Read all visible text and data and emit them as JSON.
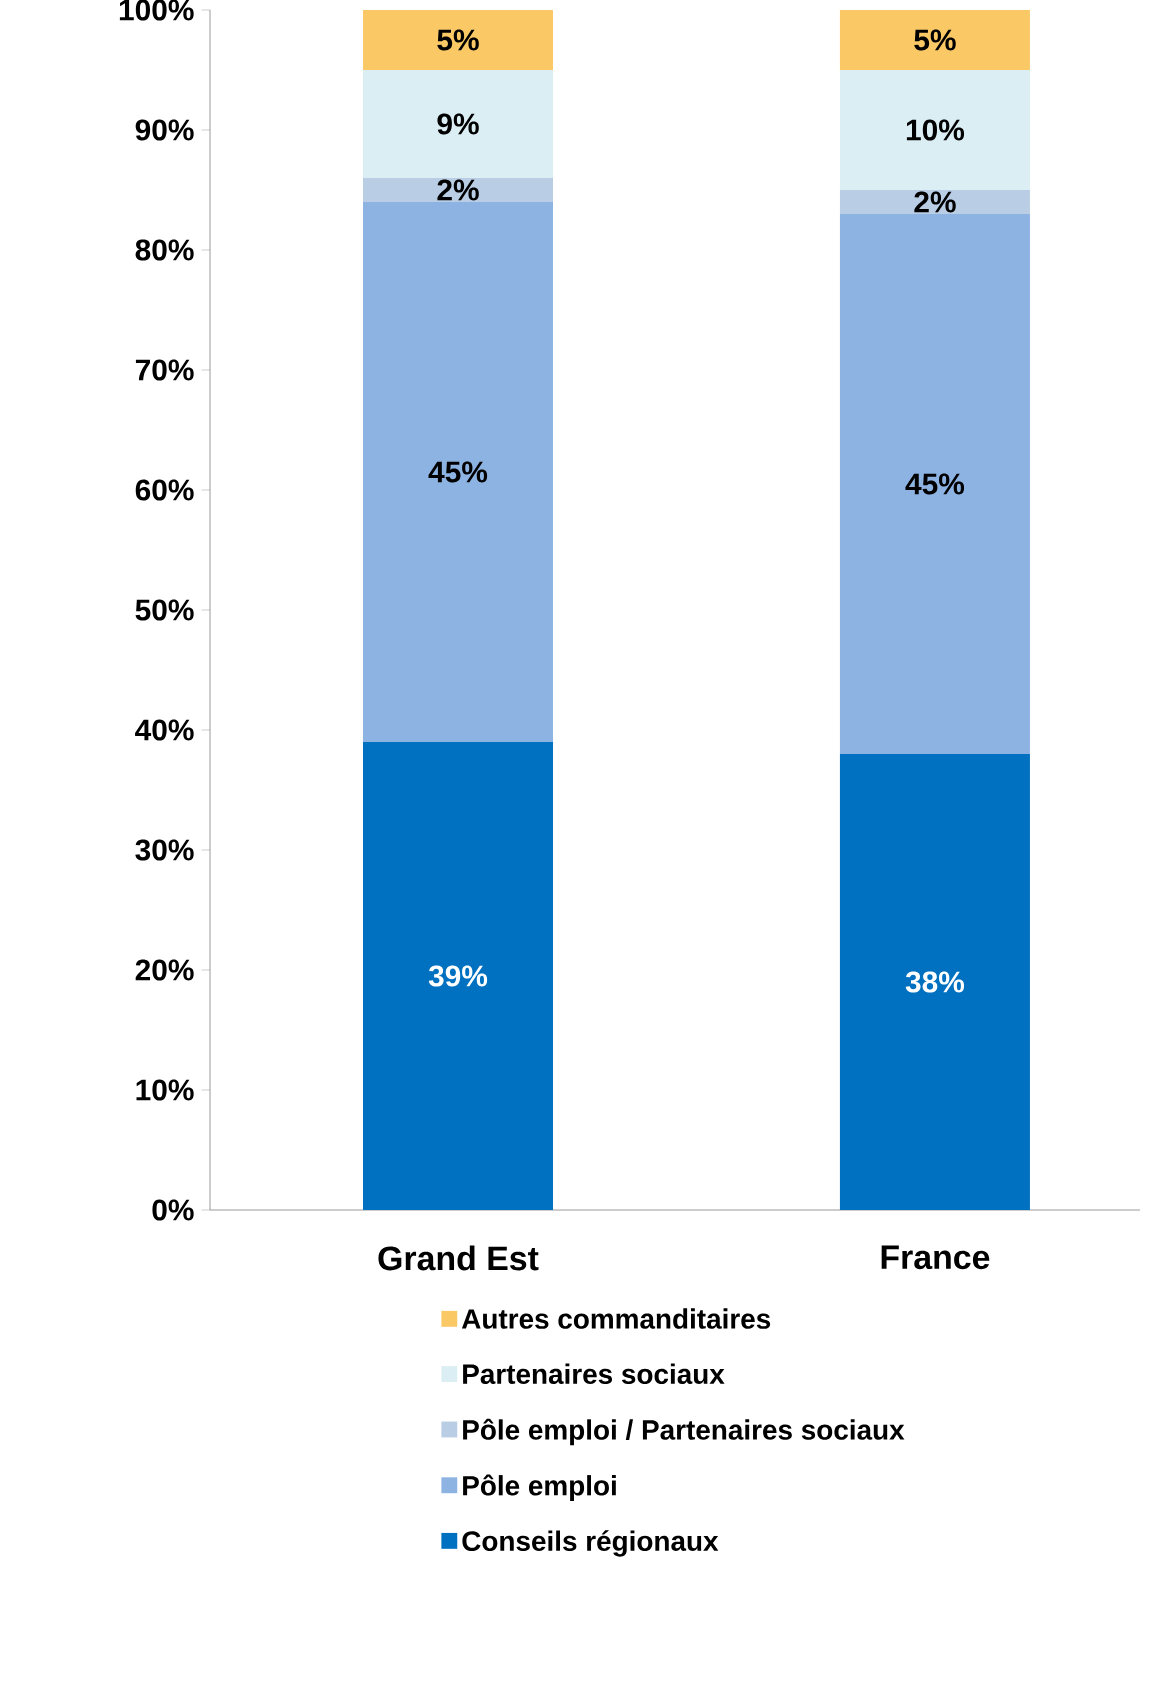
{
  "chart_data": {
    "type": "bar",
    "stacked": true,
    "categories": [
      "Grand Est",
      "France"
    ],
    "series": [
      {
        "name": "Conseils régionaux",
        "color": "#0070c0",
        "values": [
          39,
          38
        ],
        "value_labels": [
          "39%",
          "38%"
        ]
      },
      {
        "name": "Pôle emploi",
        "color": "#8db3e2",
        "values": [
          45,
          45
        ],
        "value_labels": [
          "45%",
          "45%"
        ]
      },
      {
        "name": "Pôle emploi / Partenaires sociaux",
        "color": "#b9cde5",
        "values": [
          2,
          2
        ],
        "value_labels": [
          "2%",
          "2%"
        ]
      },
      {
        "name": "Partenaires sociaux",
        "color": "#dbeef3",
        "values": [
          9,
          10
        ],
        "value_labels": [
          "9%",
          "10%"
        ]
      },
      {
        "name": "Autres commanditaires",
        "color": "#fac864",
        "values": [
          5,
          5
        ],
        "value_labels": [
          "5%",
          "5%"
        ]
      }
    ],
    "ylim": [
      0,
      100
    ],
    "yticks": [
      {
        "value": 0,
        "label": "0%"
      },
      {
        "value": 10,
        "label": "10%"
      },
      {
        "value": 20,
        "label": "20%"
      },
      {
        "value": 30,
        "label": "30%"
      },
      {
        "value": 40,
        "label": "40%"
      },
      {
        "value": 50,
        "label": "50%"
      },
      {
        "value": 60,
        "label": "60%"
      },
      {
        "value": 70,
        "label": "70%"
      },
      {
        "value": 80,
        "label": "80%"
      },
      {
        "value": 90,
        "label": "90%"
      },
      {
        "value": 100,
        "label": "100%"
      }
    ],
    "legend": "bottom",
    "grid": false
  }
}
